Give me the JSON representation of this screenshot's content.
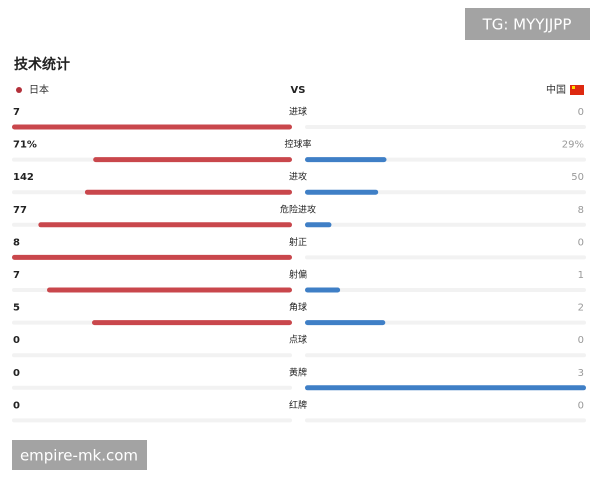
{
  "watermark_top": "TG: MYYJJPP",
  "title": "技术统计",
  "home_team": "日本",
  "vs": "VS",
  "away_team": "中国",
  "rows": [
    {
      "label": "进球",
      "home": 7,
      "away": 0
    },
    {
      "label": "控球率",
      "home": 71,
      "away": 29,
      "home_label": "71%",
      "away_label": "29%"
    },
    {
      "label": "进攻",
      "home": 142,
      "away": 50
    },
    {
      "label": "危险进攻",
      "home": 77,
      "away": 8
    },
    {
      "label": "射正",
      "home": 8,
      "away": 0
    },
    {
      "label": "射偏",
      "home": 7,
      "away": 1
    },
    {
      "label": "角球",
      "home": 5,
      "away": 2
    },
    {
      "label": "点球",
      "home": 0,
      "away": 0
    },
    {
      "label": "黄牌",
      "home": 0,
      "away": 3
    },
    {
      "label": "红牌",
      "home": 0,
      "away": 0
    }
  ],
  "watermark_bottom": "empire-mk.com"
}
